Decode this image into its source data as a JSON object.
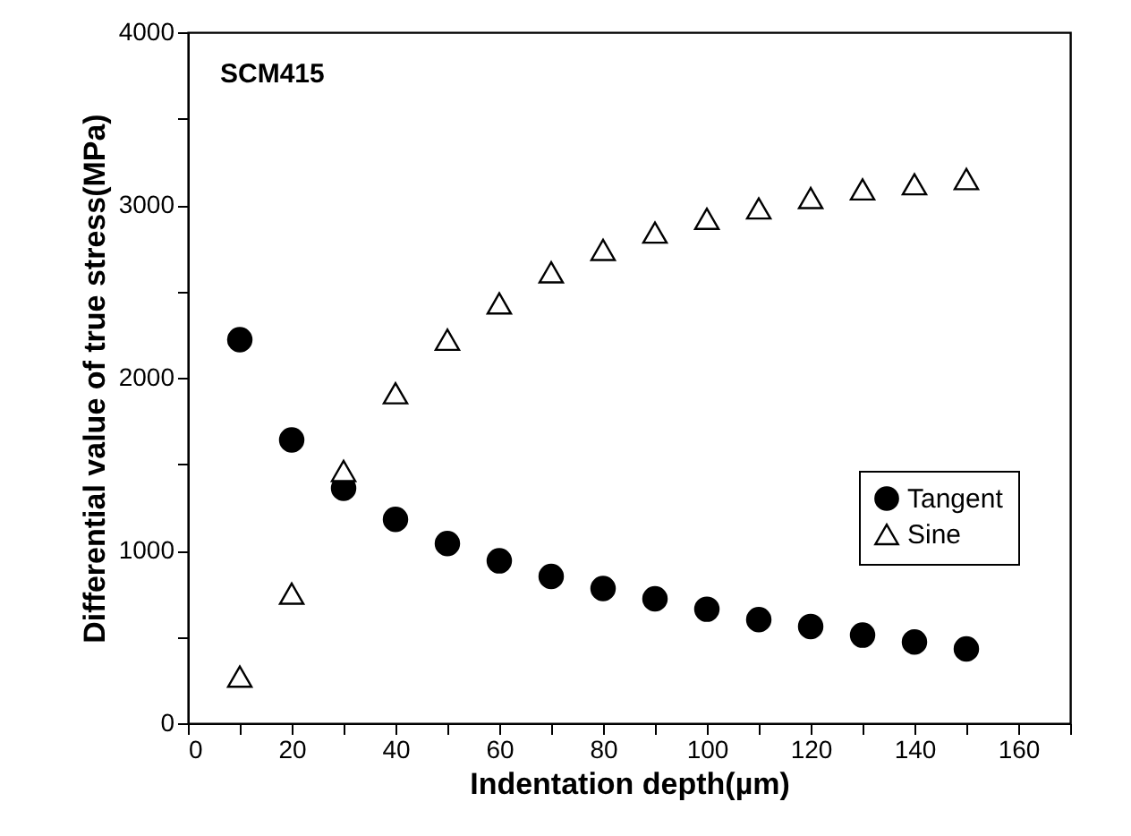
{
  "chart_data": {
    "type": "scatter",
    "xlabel": "Indentation depth(µm)",
    "ylabel": "Differential value of true stress(MPa)",
    "annotations": [
      "SCM415"
    ],
    "x": [
      10,
      20,
      30,
      40,
      50,
      60,
      70,
      80,
      90,
      100,
      110,
      120,
      130,
      140,
      150
    ],
    "series": [
      {
        "name": "Tangent",
        "color": "#000000",
        "marker": "circle",
        "values": [
          2220,
          1640,
          1360,
          1180,
          1040,
          940,
          850,
          780,
          720,
          660,
          600,
          560,
          510,
          470,
          430
        ]
      },
      {
        "name": "Sine",
        "color": "#000000",
        "marker": "triangle",
        "values": [
          270,
          750,
          1460,
          1910,
          2220,
          2430,
          2610,
          2740,
          2840,
          2920,
          2980,
          3040,
          3090,
          3120,
          3150
        ]
      }
    ],
    "xlim": [
      0,
      170
    ],
    "xticks": [
      0,
      {
        "value": 10,
        "label": null
      },
      20,
      {
        "value": 30,
        "label": null
      },
      40,
      {
        "value": 50,
        "label": null
      },
      60,
      {
        "value": 70,
        "label": null
      },
      80,
      {
        "value": 90,
        "label": null
      },
      100,
      {
        "value": 110,
        "label": null
      },
      120,
      {
        "value": 130,
        "label": null
      },
      140,
      {
        "value": 150,
        "label": null
      },
      160,
      {
        "value": 170,
        "label": null
      }
    ],
    "ylim": [
      0,
      4000
    ],
    "yticks": [
      0,
      {
        "value": 500,
        "label": null
      },
      1000,
      {
        "value": 1500,
        "label": null
      },
      2000,
      {
        "value": 2500,
        "label": null
      },
      3000,
      {
        "value": 3500,
        "label": null
      },
      4000
    ],
    "legend": "bottom right",
    "grid": false
  }
}
